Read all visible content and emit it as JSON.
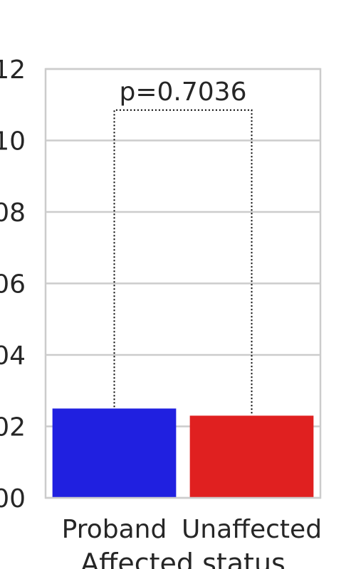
{
  "chart_data": {
    "type": "bar",
    "categories": [
      "Proband",
      "Unaffected"
    ],
    "values": [
      0.025,
      0.023
    ],
    "title": "",
    "xlabel": "Affected status",
    "ylabel": "",
    "ylim": [
      0,
      0.12
    ],
    "yticks": [
      0.0,
      0.02,
      0.04,
      0.06,
      0.08,
      0.1,
      0.12
    ],
    "ytick_labels": [
      "00",
      "02",
      "04",
      "06",
      "08",
      "10",
      "12"
    ],
    "grid": true,
    "colors": [
      "#2020e0",
      "#e02020"
    ],
    "annotation": {
      "text": "p=0.7036",
      "bracket_y": 0.1085
    }
  }
}
